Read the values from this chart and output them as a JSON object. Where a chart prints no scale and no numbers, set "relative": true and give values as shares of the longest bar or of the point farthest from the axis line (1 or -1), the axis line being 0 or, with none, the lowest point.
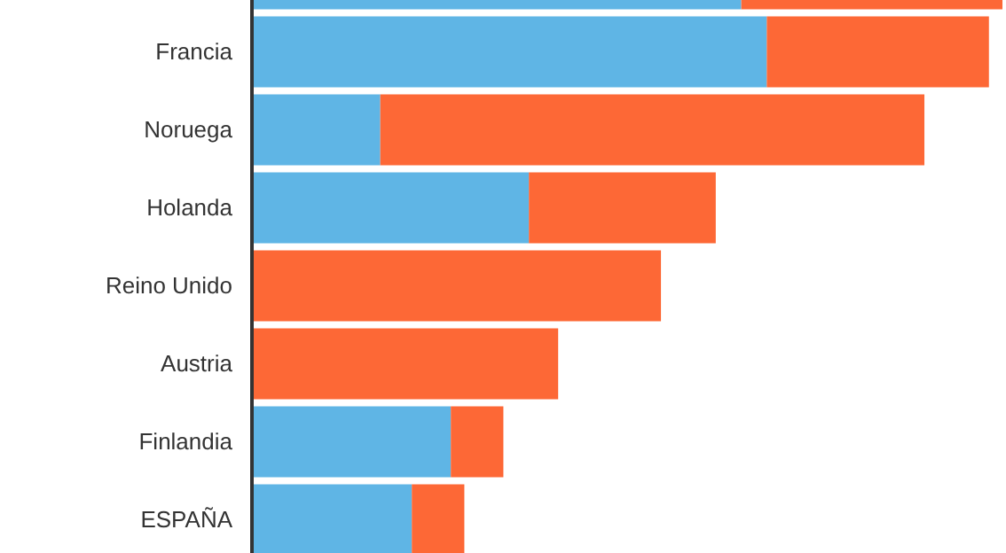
{
  "chart_data": {
    "type": "bar",
    "orientation": "horizontal",
    "stacked": true,
    "relative": true,
    "categories": [
      null,
      "Francia",
      "Noruega",
      "Holanda",
      "Reino Unido",
      "Austria",
      "Finlandia",
      "ESPAÑA"
    ],
    "series": [
      {
        "color": "#5fb5e5",
        "values": [
          0.652,
          0.686,
          0.171,
          0.369,
          0,
          0,
          0.265,
          0.213
        ]
      },
      {
        "color": "#fd6836",
        "values": [
          0.348,
          0.296,
          0.725,
          0.249,
          0.545,
          0.408,
          0.07,
          0.07
        ]
      }
    ],
    "grid": false,
    "legend": false
  }
}
